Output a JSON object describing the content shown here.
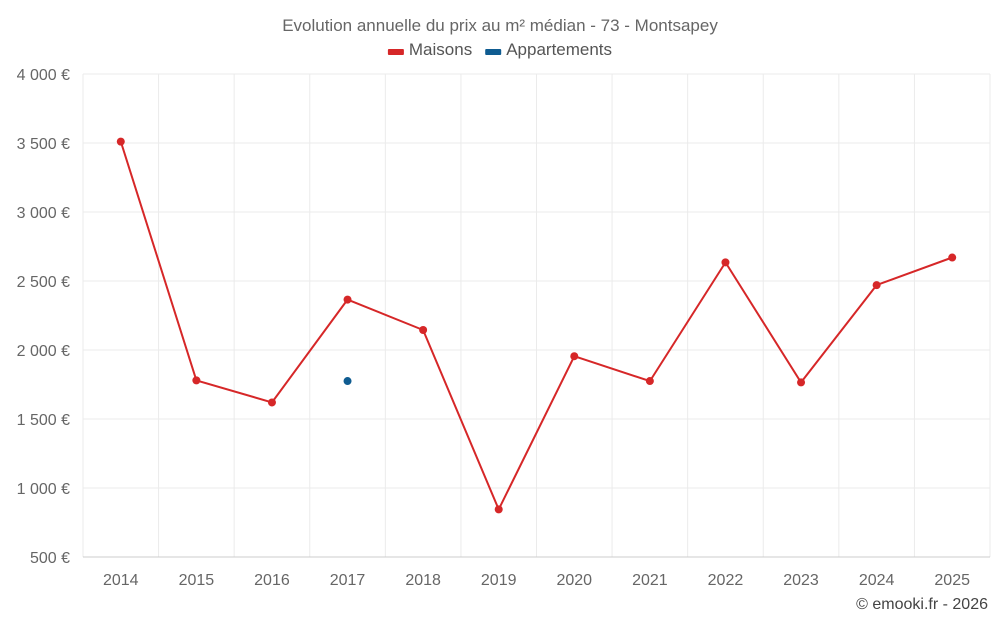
{
  "chart_data": {
    "type": "line",
    "title": "Evolution annuelle du prix au m² médian - 73 - Montsapey",
    "categories": [
      "2014",
      "2015",
      "2016",
      "2017",
      "2018",
      "2019",
      "2020",
      "2021",
      "2022",
      "2023",
      "2024",
      "2025"
    ],
    "ylim": [
      500,
      4000
    ],
    "yticks": [
      500,
      1000,
      1500,
      2000,
      2500,
      3000,
      3500,
      4000
    ],
    "ytick_labels": [
      "500 €",
      "1 000 €",
      "1 500 €",
      "2 000 €",
      "2 500 €",
      "3 000 €",
      "3 500 €",
      "4 000 €"
    ],
    "grid": true,
    "legend_position": "top-center",
    "series": [
      {
        "name": "Maisons",
        "color": "#d62728",
        "values": [
          3510,
          1780,
          1620,
          2365,
          2145,
          845,
          1955,
          1775,
          2635,
          1765,
          2470,
          2670
        ]
      },
      {
        "name": "Appartements",
        "color": "#0f5c91",
        "values": [
          null,
          null,
          null,
          1775,
          null,
          null,
          null,
          null,
          null,
          null,
          null,
          null
        ]
      }
    ]
  },
  "credits": "© emooki.fr - 2026"
}
